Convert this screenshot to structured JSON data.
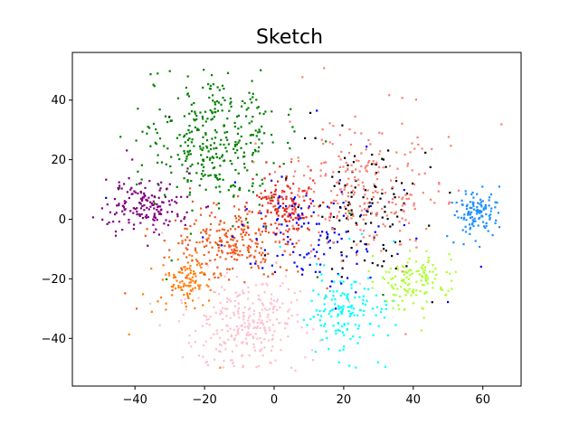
{
  "chart_data": {
    "type": "scatter",
    "title": "Sketch",
    "xlabel": "",
    "ylabel": "",
    "xlim": [
      -58,
      71
    ],
    "ylim": [
      -56,
      56
    ],
    "x_ticks": [
      -40,
      -20,
      0,
      20,
      40,
      60
    ],
    "y_ticks": [
      -40,
      -20,
      0,
      20,
      40
    ],
    "x_tick_labels": [
      "−40",
      "−20",
      "0",
      "20",
      "40",
      "60"
    ],
    "y_tick_labels": [
      "−40",
      "−20",
      "0",
      "20",
      "40"
    ],
    "grid": false,
    "legend": false,
    "series": [
      {
        "color": "#008000",
        "count": 360,
        "cx": -17,
        "cy": 26,
        "sx": 9,
        "sy": 11,
        "spread": "main"
      },
      {
        "color": "#800080",
        "count": 170,
        "cx": -37,
        "cy": 5,
        "sx": 6,
        "sy": 5,
        "spread": "main"
      },
      {
        "color": "#ff7f0e",
        "count": 110,
        "cx": -26,
        "cy": -21,
        "sx": 3.2,
        "sy": 4,
        "spread": "main"
      },
      {
        "color": "#f05a1e",
        "count": 240,
        "cx": -12,
        "cy": -7,
        "sx": 8,
        "sy": 6,
        "spread": "main"
      },
      {
        "color": "#ffc0cb",
        "count": 300,
        "cx": -8,
        "cy": -35,
        "sx": 8,
        "sy": 8,
        "spread": "main"
      },
      {
        "color": "#e8261a",
        "count": 150,
        "cx": 3,
        "cy": 4,
        "sx": 5,
        "sy": 5,
        "spread": "main"
      },
      {
        "color": "#0000ff",
        "count": 130,
        "cx": 12,
        "cy": -6,
        "sx": 11,
        "sy": 8,
        "spread": "main"
      },
      {
        "color": "#000000",
        "count": 110,
        "cx": 27,
        "cy": 5,
        "sx": 9,
        "sy": 12,
        "spread": "main"
      },
      {
        "color": "#fa8072",
        "count": 260,
        "cx": 24,
        "cy": 12,
        "sx": 11,
        "sy": 11,
        "spread": "main"
      },
      {
        "color": "#00ffff",
        "count": 150,
        "cx": 20,
        "cy": -31,
        "sx": 5,
        "sy": 6,
        "spread": "main"
      },
      {
        "color": "#adff2f",
        "count": 130,
        "cx": 41,
        "cy": -21,
        "sx": 5,
        "sy": 4.5,
        "spread": "main"
      },
      {
        "color": "#1e90ff",
        "count": 120,
        "cx": 58,
        "cy": 2,
        "sx": 3.5,
        "sy": 4,
        "spread": "main"
      }
    ]
  }
}
